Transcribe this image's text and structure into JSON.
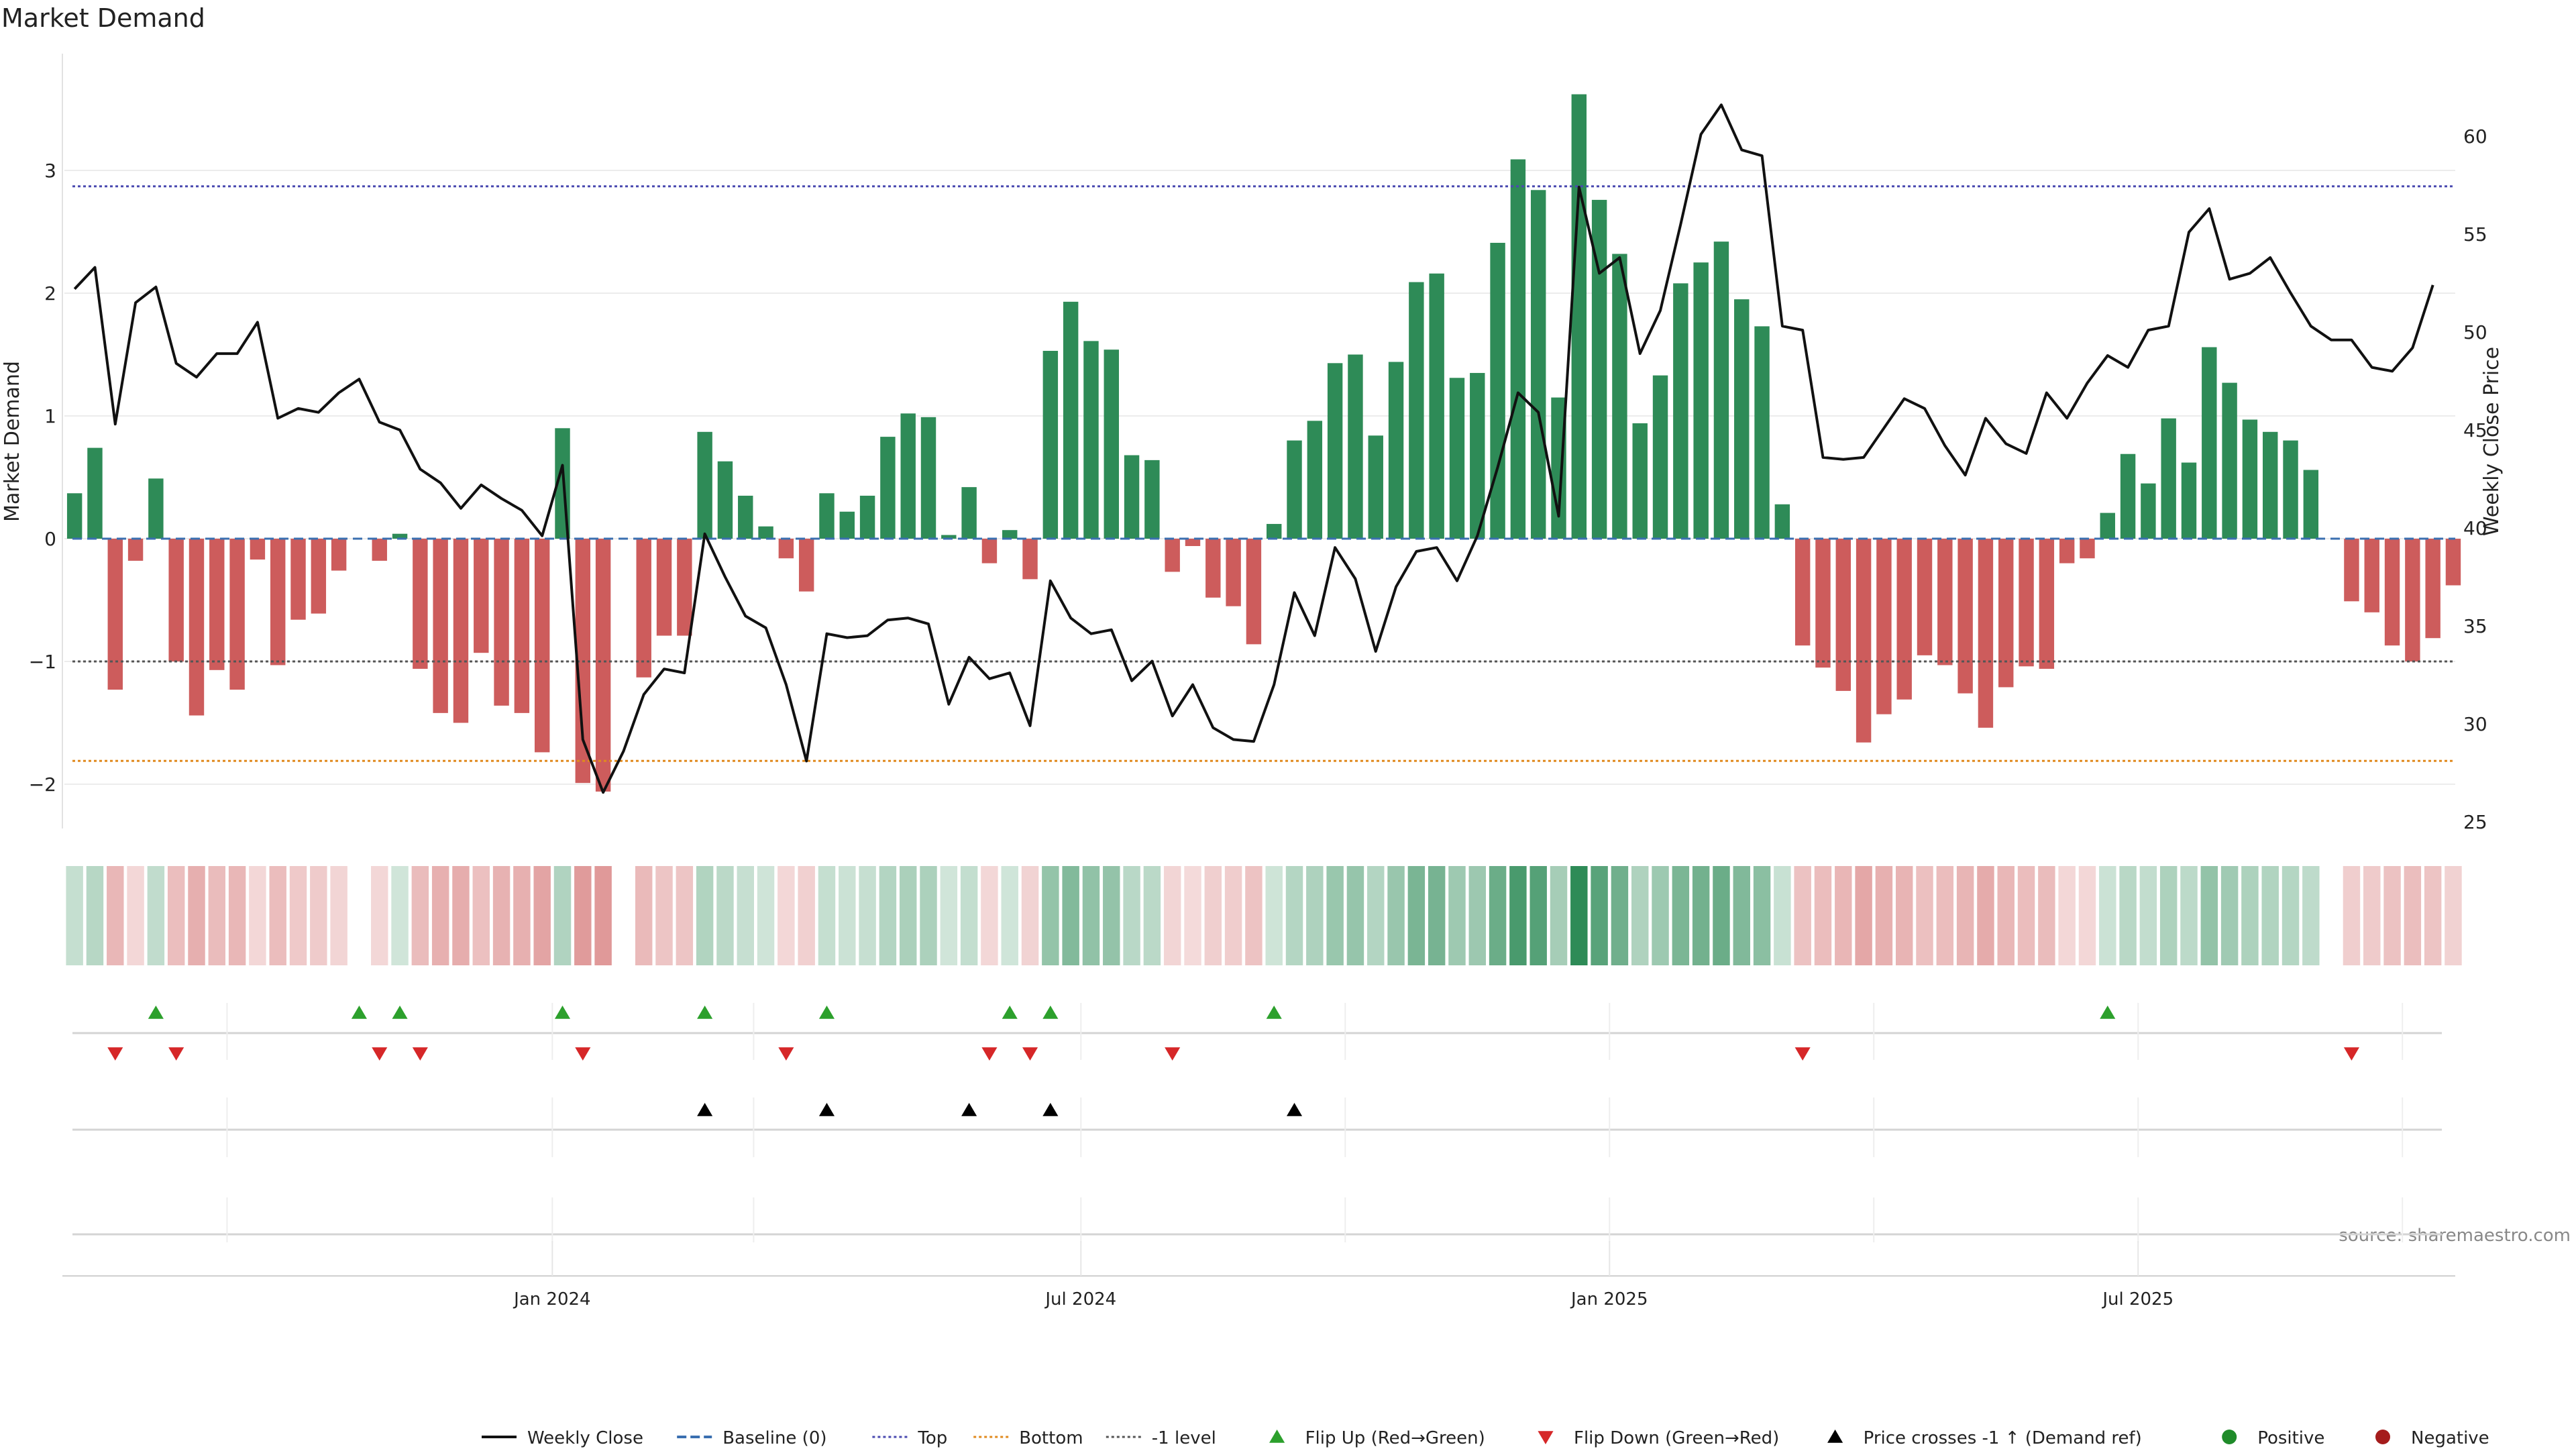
{
  "title": "Market Demand",
  "source": "source: sharemaestro.com",
  "colors": {
    "green": "#2e8b57",
    "red": "#cd5c5c",
    "price_line": "#111111",
    "top_line": "#4a4ab0",
    "bottom_line": "#e08a1e",
    "minus1_line": "#555555",
    "baseline": "#3a6fb0",
    "flip_up": "#2ca02c",
    "flip_down": "#d62728",
    "cross": "#000000",
    "positive": "#1f8b2a",
    "negative": "#a51c1c"
  },
  "chart_data": {
    "type": "bar",
    "ylabel_left": "Market Demand",
    "ylabel_right": "Weekly Close Price",
    "ylim_left": [
      -2.35,
      4.0
    ],
    "ylim_right": [
      25,
      63
    ],
    "left_ticks": [
      "−2",
      "−1",
      "0",
      "1",
      "2",
      "3"
    ],
    "right_ticks": [
      "25",
      "30",
      "35",
      "40",
      "45",
      "50",
      "55",
      "60"
    ],
    "x_tick_labels": [
      "Jan 2024",
      "Jul 2024",
      "Jan 2025",
      "Jul 2025"
    ],
    "reference_levels": {
      "top": 2.87,
      "bottom": -1.81,
      "minus_one": -1.0,
      "baseline": 0
    },
    "demand": [
      0.37,
      0.74,
      -1.23,
      -0.18,
      0.49,
      -1.0,
      -1.44,
      -1.07,
      -1.23,
      -0.17,
      -1.03,
      -0.66,
      -0.61,
      -0.26,
      0.0,
      -0.18,
      0.04,
      -1.06,
      -1.42,
      -1.5,
      -0.93,
      -1.36,
      -1.42,
      -1.74,
      0.9,
      -1.99,
      -2.06,
      0.0,
      -1.13,
      -0.79,
      -0.79,
      0.87,
      0.63,
      0.35,
      0.1,
      -0.16,
      -0.43,
      0.37,
      0.22,
      0.35,
      0.83,
      1.02,
      0.99,
      0.03,
      0.42,
      -0.2,
      0.07,
      -0.33,
      1.53,
      1.93,
      1.61,
      1.54,
      0.68,
      0.64,
      -0.27,
      -0.06,
      -0.48,
      -0.55,
      -0.86,
      0.12,
      0.8,
      0.96,
      1.43,
      1.5,
      0.84,
      1.44,
      2.09,
      2.16,
      1.31,
      1.35,
      2.41,
      3.09,
      2.84,
      1.15,
      3.62,
      2.76,
      2.32,
      0.94,
      1.33,
      2.08,
      2.25,
      2.42,
      1.95,
      1.73,
      0.28,
      -0.87,
      -1.05,
      -1.24,
      -1.66,
      -1.43,
      -1.31,
      -0.95,
      -1.03,
      -1.26,
      -1.54,
      -1.21,
      -1.04,
      -1.06,
      -0.2,
      -0.16,
      0.21,
      0.69,
      0.45,
      0.98,
      0.62,
      1.56,
      1.27,
      0.97,
      0.87,
      0.8,
      0.56,
      0.0,
      -0.51,
      -0.6,
      -0.87,
      -1.0,
      -0.81,
      -0.38
    ],
    "price": [
      52.2,
      53.3,
      45.3,
      51.5,
      52.3,
      48.4,
      47.7,
      48.9,
      48.9,
      50.5,
      45.6,
      46.1,
      45.9,
      46.9,
      47.6,
      45.4,
      45.0,
      43.0,
      42.3,
      41.0,
      42.2,
      41.5,
      40.9,
      39.6,
      43.2,
      29.2,
      26.5,
      28.6,
      31.5,
      32.8,
      32.6,
      39.7,
      37.5,
      35.5,
      34.9,
      32.0,
      28.1,
      34.6,
      34.4,
      34.5,
      35.3,
      35.4,
      35.1,
      31.0,
      33.4,
      32.3,
      32.6,
      29.9,
      37.3,
      35.4,
      34.6,
      34.8,
      32.2,
      33.2,
      30.4,
      32.0,
      29.8,
      29.2,
      29.1,
      32.0,
      36.7,
      34.5,
      39.0,
      37.4,
      33.7,
      37.0,
      38.8,
      39.0,
      37.3,
      39.6,
      43.1,
      46.9,
      45.9,
      40.6,
      57.4,
      53.0,
      53.8,
      48.9,
      51.1,
      55.5,
      60.1,
      61.6,
      59.3,
      59.0,
      50.3,
      50.1,
      43.6,
      43.5,
      43.6,
      45.1,
      46.6,
      46.1,
      44.2,
      42.7,
      45.6,
      44.3,
      43.8,
      46.9,
      45.6,
      47.4,
      48.8,
      48.2,
      50.1,
      50.3,
      55.1,
      56.3,
      52.7,
      53.0,
      53.8,
      52.0,
      50.3,
      49.6,
      49.6,
      48.2,
      48.0,
      49.2,
      52.4
    ],
    "flip_up_weeks": [
      4,
      14,
      16,
      24,
      31,
      37,
      46,
      48,
      59,
      100
    ],
    "flip_down_weeks": [
      2,
      5,
      15,
      17,
      25,
      35,
      45,
      47,
      54,
      85,
      112
    ],
    "price_cross_weeks": [
      31,
      37,
      44,
      48,
      60
    ]
  },
  "legend": [
    {
      "label": "Weekly Close",
      "kind": "line"
    },
    {
      "label": "Baseline (0)",
      "kind": "baseline"
    },
    {
      "label": "Top",
      "kind": "top"
    },
    {
      "label": "Bottom",
      "kind": "bottom"
    },
    {
      "label": "-1 level",
      "kind": "minus1"
    },
    {
      "label": "Flip Up (Red→Green)",
      "kind": "flipup"
    },
    {
      "label": "Flip Down (Green→Red)",
      "kind": "flipdown"
    },
    {
      "label": "Price crosses -1 ↑ (Demand ref)",
      "kind": "cross"
    },
    {
      "label": "Positive",
      "kind": "positive"
    },
    {
      "label": "Negative",
      "kind": "negative"
    }
  ]
}
